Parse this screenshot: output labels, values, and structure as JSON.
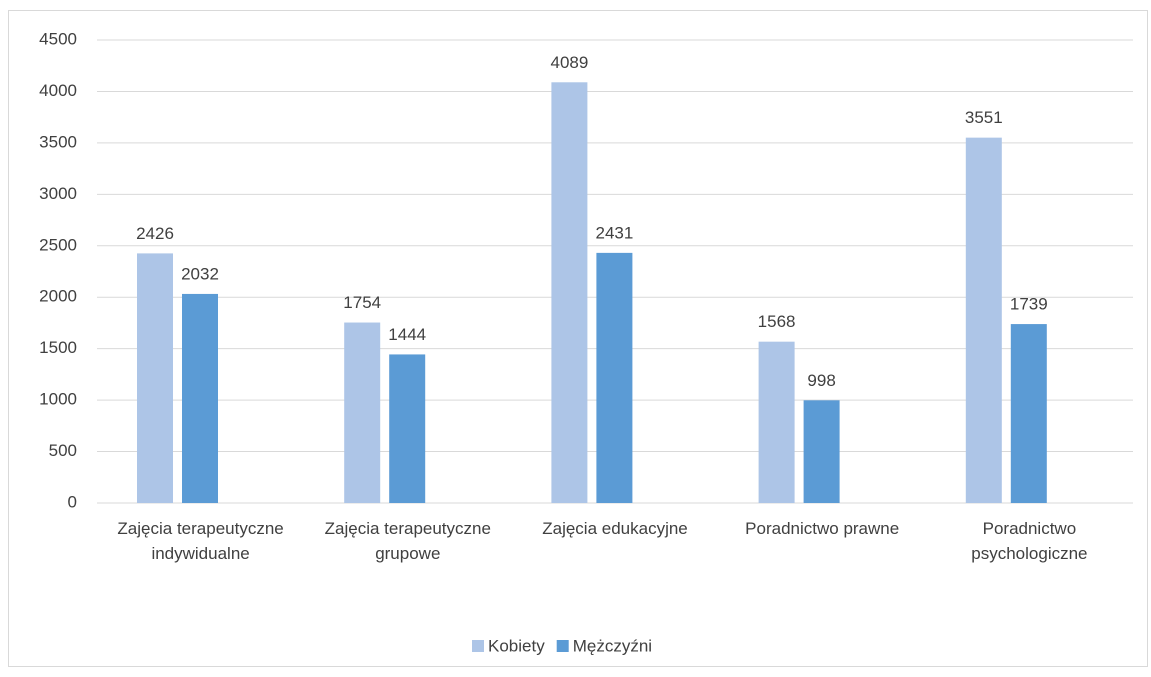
{
  "chart_data": {
    "type": "bar",
    "categories": [
      "Zajęcia terapeutyczne indywidualne",
      "Zajęcia terapeutyczne grupowe",
      "Zajęcia edukacyjne",
      "Poradnictwo prawne",
      "Poradnictwo psychologiczne"
    ],
    "series": [
      {
        "name": "Kobiety",
        "color": "#adc5e7",
        "values": [
          2426,
          1754,
          4089,
          1568,
          3551
        ]
      },
      {
        "name": "Mężczyźni",
        "color": "#5b9bd5",
        "values": [
          2032,
          1444,
          2431,
          998,
          1739
        ]
      }
    ],
    "ylim": [
      0,
      4500
    ],
    "yticks": [
      0,
      500,
      1000,
      1500,
      2000,
      2500,
      3000,
      3500,
      4000,
      4500
    ],
    "grid": true,
    "legend": "bottom"
  }
}
